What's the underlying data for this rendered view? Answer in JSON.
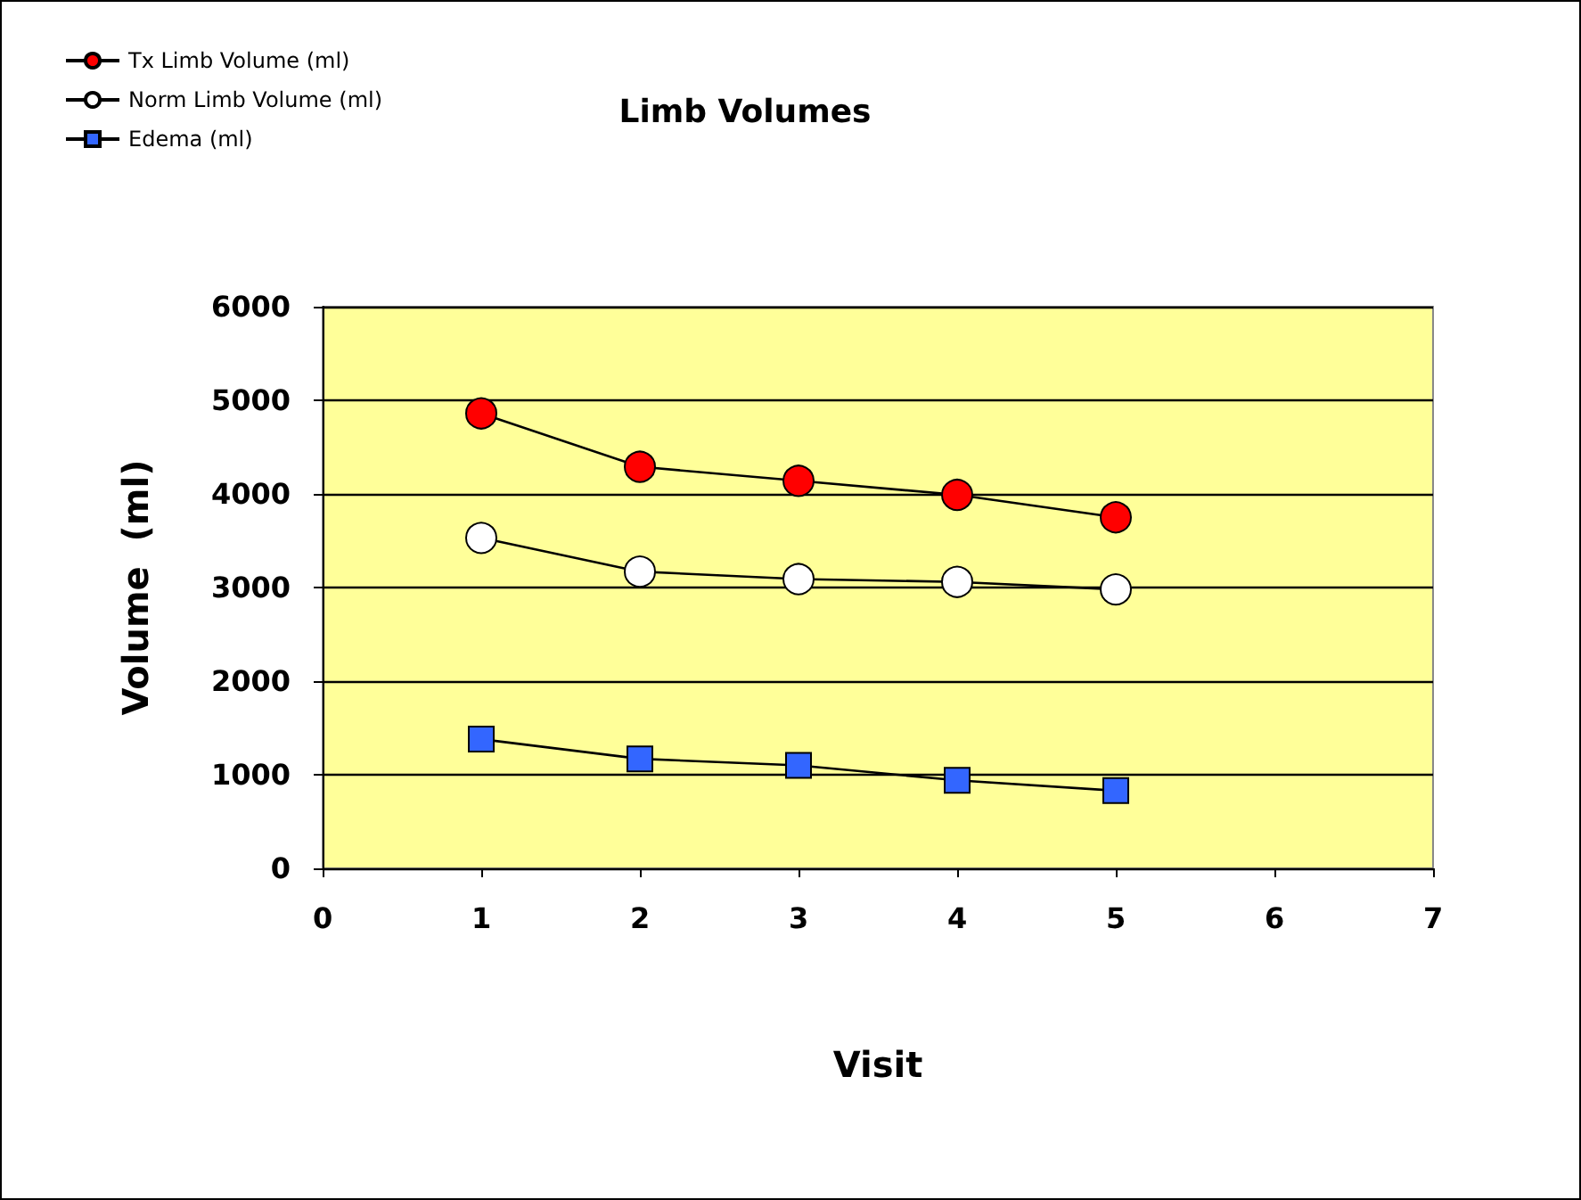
{
  "chart_data": {
    "type": "line",
    "title": "Limb Volumes",
    "xlabel": "Visit",
    "ylabel": "Volume  (ml)",
    "x": [
      1,
      2,
      3,
      4,
      5
    ],
    "series": [
      {
        "name": "Tx Limb Volume (ml)",
        "color": "#ff0000",
        "marker": "circle",
        "values": [
          4860,
          4290,
          4140,
          3990,
          3750
        ]
      },
      {
        "name": "Norm Limb Volume (ml)",
        "color": "#ffffff",
        "marker": "circle",
        "values": [
          3530,
          3170,
          3090,
          3060,
          2980
        ]
      },
      {
        "name": "Edema (ml)",
        "color": "#3366ff",
        "marker": "square",
        "values": [
          1380,
          1170,
          1100,
          940,
          830
        ]
      }
    ],
    "xlim": [
      0,
      7
    ],
    "xticks": [
      0,
      1,
      2,
      3,
      4,
      5,
      6,
      7
    ],
    "ylim": [
      0,
      6000
    ],
    "yticks": [
      0,
      1000,
      2000,
      3000,
      4000,
      5000,
      6000
    ],
    "grid": "y",
    "legend": "top left",
    "line_style": "solid"
  }
}
